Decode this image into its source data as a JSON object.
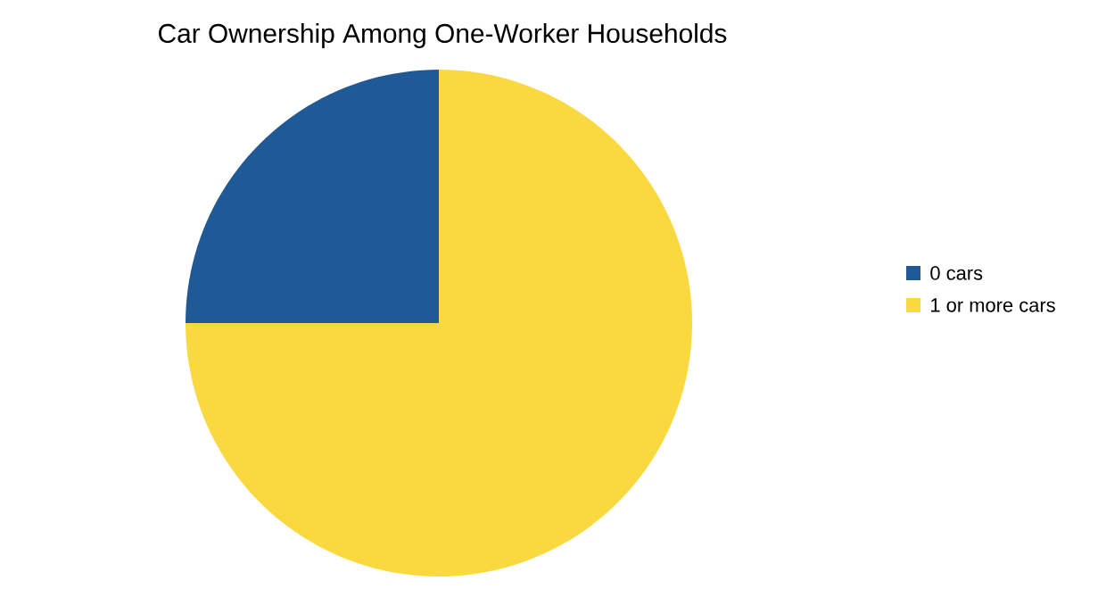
{
  "chart_data": {
    "type": "pie",
    "title": "Car Ownership Among One-Worker Households",
    "categories": [
      "0 cars",
      "1 or more cars"
    ],
    "values": [
      25,
      75
    ],
    "colors": [
      "#1f5a96",
      "#fad940"
    ],
    "legend": "right"
  }
}
